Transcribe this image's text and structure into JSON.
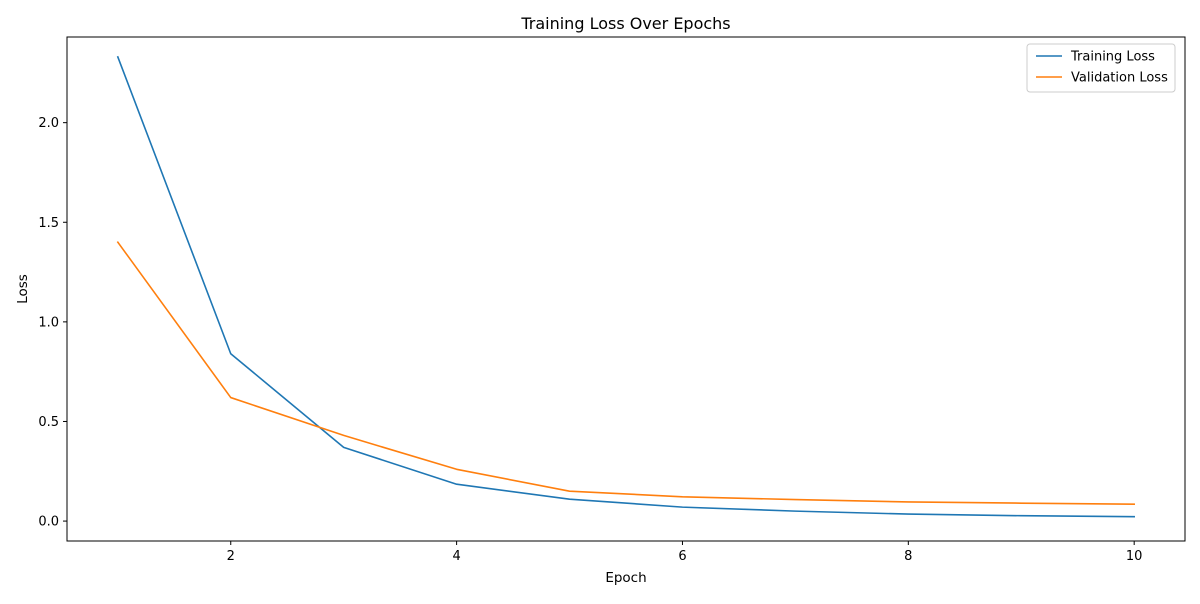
{
  "chart_data": {
    "type": "line",
    "title": "Training Loss Over Epochs",
    "xlabel": "Epoch",
    "ylabel": "Loss",
    "x": [
      1,
      2,
      3,
      4,
      5,
      6,
      7,
      8,
      9,
      10
    ],
    "series": [
      {
        "name": "Training Loss",
        "color": "#1f77b4",
        "values": [
          2.33,
          0.84,
          0.37,
          0.185,
          0.11,
          0.07,
          0.05,
          0.035,
          0.027,
          0.022
        ]
      },
      {
        "name": "Validation Loss",
        "color": "#ff7f0e",
        "values": [
          1.4,
          0.62,
          0.43,
          0.26,
          0.15,
          0.122,
          0.108,
          0.096,
          0.09,
          0.085
        ]
      }
    ],
    "xlim": [
      0.55,
      10.45
    ],
    "ylim": [
      -0.1,
      2.43
    ],
    "x_ticks": [
      2,
      4,
      6,
      8,
      10
    ],
    "x_tick_labels": [
      "2",
      "4",
      "6",
      "8",
      "10"
    ],
    "y_ticks": [
      0.0,
      0.5,
      1.0,
      1.5,
      2.0
    ],
    "y_tick_labels": [
      "0.0",
      "0.5",
      "1.0",
      "1.5",
      "2.0"
    ],
    "grid": false,
    "legend_position": "top-right"
  }
}
